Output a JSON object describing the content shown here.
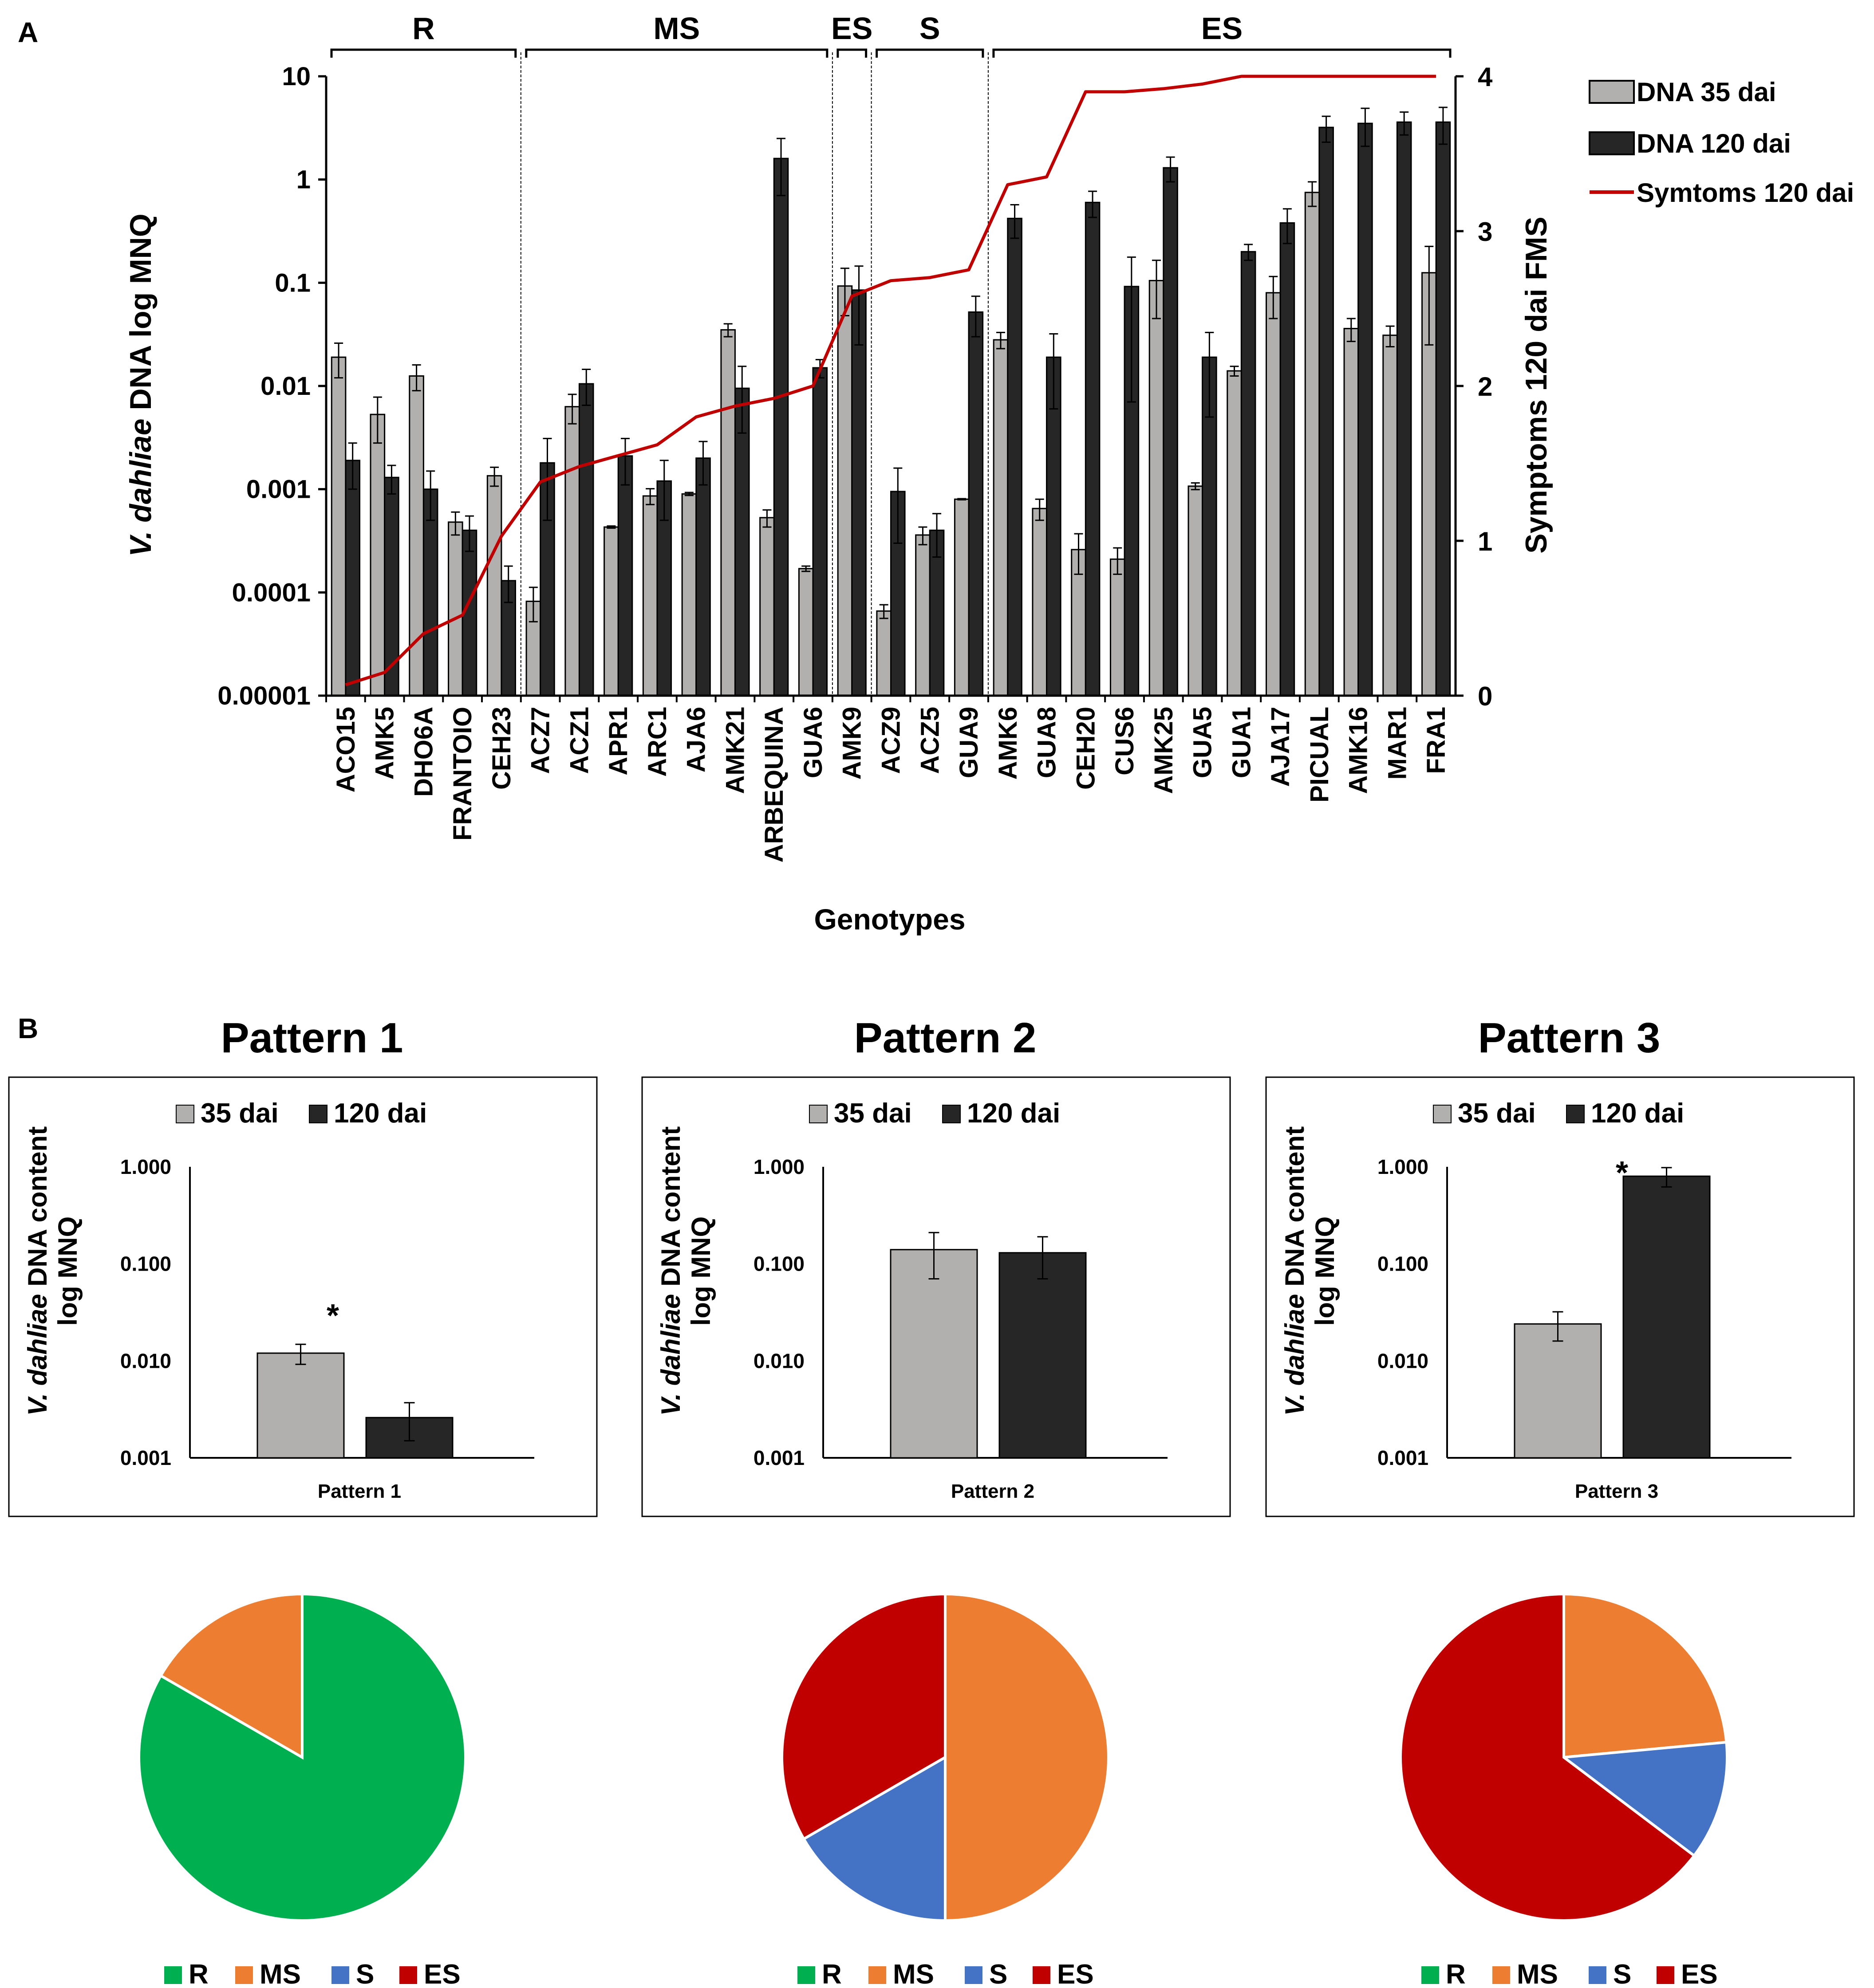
{
  "colors": {
    "bar35": "#b2b0ae",
    "bar120": "#262626",
    "symptoms": "#c00000",
    "R": "#00b050",
    "MS": "#ed7d31",
    "S": "#4472c4",
    "ES": "#c00000"
  },
  "panel_a": {
    "letter": "A",
    "groups": [
      "R",
      "MS",
      "ES",
      "S",
      "ES"
    ],
    "xlabel": "Genotypes",
    "ylabel_italic": "V. dahliae",
    "ylabel_rest": " DNA  log MNQ",
    "y2label": "Symptoms 120 dai FMS",
    "yticks": [
      "10",
      "1",
      "0.1",
      "0.01",
      "0.001",
      "0.0001",
      "0.00001"
    ],
    "y2ticks": [
      "4",
      "3",
      "2",
      "1",
      "0"
    ],
    "legend": [
      "DNA 35 dai",
      "DNA 120 dai",
      "Symtoms 120 dai"
    ]
  },
  "panel_b": {
    "letter": "B",
    "yticks": [
      "1.000",
      "0.100",
      "0.010",
      "0.001"
    ],
    "ylabel_italic": "V. dahliae",
    "ylabel_rest": " DNA content",
    "ylabel_line2": "log MNQ",
    "legend": [
      "35 dai",
      "120 dai"
    ],
    "star": "*",
    "pie_legend": [
      "R",
      "MS",
      "S",
      "ES"
    ],
    "patterns": [
      {
        "title": "Pattern 1",
        "xlabel": "Pattern 1"
      },
      {
        "title": "Pattern 2",
        "xlabel": "Pattern 2"
      },
      {
        "title": "Pattern 3",
        "xlabel": "Pattern 3"
      }
    ]
  },
  "chart_data": [
    {
      "type": "bar",
      "title": "",
      "xlabel": "Genotypes",
      "ylabel": "V. dahliae DNA log MNQ",
      "yscale": "log",
      "ylim": [
        1e-05,
        10
      ],
      "y2label": "Symptoms 120 dai FMS",
      "y2lim": [
        0,
        4
      ],
      "categories": [
        "ACO15",
        "AMK5",
        "DHO6A",
        "FRANTOIO",
        "CEH23",
        "ACZ7",
        "ACZ1",
        "APR1",
        "ARC1",
        "AJA6",
        "AMK21",
        "ARBEQUINA",
        "GUA6",
        "AMK9",
        "ACZ9",
        "ACZ5",
        "GUA9",
        "AMK6",
        "GUA8",
        "CEH20",
        "CUS6",
        "AMK25",
        "GUA5",
        "GUA1",
        "AJA17",
        "PICUAL",
        "AMK16",
        "MAR1",
        "FRA1"
      ],
      "groups": [
        {
          "label": "R",
          "first": 0,
          "last": 4
        },
        {
          "label": "MS",
          "first": 5,
          "last": 12
        },
        {
          "label": "ES",
          "first": 13,
          "last": 13
        },
        {
          "label": "S",
          "first": 14,
          "last": 16
        },
        {
          "label": "ES",
          "first": 17,
          "last": 28
        }
      ],
      "series": [
        {
          "name": "DNA 35 dai",
          "kind": "bar",
          "values": [
            0.019,
            0.0053,
            0.0125,
            0.00048,
            0.00135,
            8.2e-05,
            0.0063,
            0.00043,
            0.00086,
            0.0009,
            0.035,
            0.00053,
            0.00017,
            0.093,
            6.6e-05,
            0.00036,
            0.0008,
            0.028,
            0.00065,
            0.00026,
            0.00021,
            0.105,
            0.00107,
            0.014,
            0.08,
            0.75,
            0.036,
            0.031,
            0.125
          ],
          "errors": [
            0.007,
            0.0025,
            0.0035,
            0.00012,
            0.00028,
            3e-05,
            0.002,
            1e-05,
            0.00015,
            3e-05,
            0.005,
            0.0001,
            1e-05,
            0.045,
            1e-05,
            7e-05,
            1e-05,
            0.005,
            0.00015,
            0.00011,
            6e-05,
            0.06,
            8e-05,
            0.0015,
            0.035,
            0.2,
            0.009,
            0.007,
            0.1
          ]
        },
        {
          "name": "DNA 120 dai",
          "kind": "bar",
          "values": [
            0.0019,
            0.0013,
            0.001,
            0.0004,
            0.00013,
            0.0018,
            0.0105,
            0.0021,
            0.0012,
            0.002,
            0.0095,
            1.6,
            0.015,
            0.085,
            0.00095,
            0.0004,
            0.052,
            0.42,
            0.019,
            0.6,
            0.092,
            1.3,
            0.019,
            0.2,
            0.38,
            3.2,
            3.5,
            3.6,
            3.6
          ],
          "errors": [
            0.0009,
            0.0004,
            0.0005,
            0.00015,
            5e-05,
            0.0013,
            0.004,
            0.001,
            0.0007,
            0.0009,
            0.006,
            0.9,
            0.003,
            0.06,
            0.00065,
            0.00018,
            0.022,
            0.15,
            0.013,
            0.17,
            0.085,
            0.35,
            0.014,
            0.035,
            0.14,
            0.9,
            1.4,
            0.9,
            1.4
          ]
        },
        {
          "name": "Symtoms 120 dai",
          "kind": "line",
          "axis": "y2",
          "values": [
            0.07,
            0.15,
            0.4,
            0.52,
            1.03,
            1.38,
            1.48,
            1.55,
            1.62,
            1.8,
            1.87,
            1.92,
            2.0,
            2.58,
            2.68,
            2.7,
            2.75,
            3.3,
            3.35,
            3.9,
            3.9,
            3.92,
            3.95,
            4.0,
            4.0,
            4.0,
            4.0,
            4.0,
            4.0
          ]
        }
      ],
      "legend_position": "top-right"
    },
    {
      "type": "bar",
      "title": "Pattern 1",
      "yscale": "log",
      "ylim": [
        0.001,
        1
      ],
      "ylabel": "V. dahliae DNA content log MNQ",
      "categories": [
        "Pattern 1"
      ],
      "series": [
        {
          "name": "35 dai",
          "values": [
            0.012
          ],
          "errors": [
            0.0028
          ]
        },
        {
          "name": "120 dai",
          "values": [
            0.0026
          ],
          "errors": [
            0.0011
          ]
        }
      ],
      "annotation": "*"
    },
    {
      "type": "bar",
      "title": "Pattern 2",
      "yscale": "log",
      "ylim": [
        0.001,
        1
      ],
      "ylabel": "V. dahliae DNA content log MNQ",
      "categories": [
        "Pattern 2"
      ],
      "series": [
        {
          "name": "35 dai",
          "values": [
            0.14
          ],
          "errors": [
            0.07
          ]
        },
        {
          "name": "120 dai",
          "values": [
            0.13
          ],
          "errors": [
            0.06
          ]
        }
      ]
    },
    {
      "type": "bar",
      "title": "Pattern 3",
      "yscale": "log",
      "ylim": [
        0.001,
        1
      ],
      "ylabel": "V. dahliae DNA content log MNQ",
      "categories": [
        "Pattern 3"
      ],
      "series": [
        {
          "name": "35 dai",
          "values": [
            0.024
          ],
          "errors": [
            0.008
          ]
        },
        {
          "name": "120 dai",
          "values": [
            0.8
          ],
          "errors": [
            0.18
          ]
        }
      ],
      "annotation": "*"
    },
    {
      "type": "pie",
      "title": "Pattern 1",
      "labels": [
        "R",
        "MS",
        "S",
        "ES"
      ],
      "values": [
        5,
        1,
        0,
        0
      ]
    },
    {
      "type": "pie",
      "title": "Pattern 2",
      "labels": [
        "R",
        "MS",
        "S",
        "ES"
      ],
      "values": [
        0,
        3,
        1,
        2
      ]
    },
    {
      "type": "pie",
      "title": "Pattern 3",
      "labels": [
        "R",
        "MS",
        "S",
        "ES"
      ],
      "values": [
        0,
        4,
        2,
        11
      ]
    }
  ]
}
